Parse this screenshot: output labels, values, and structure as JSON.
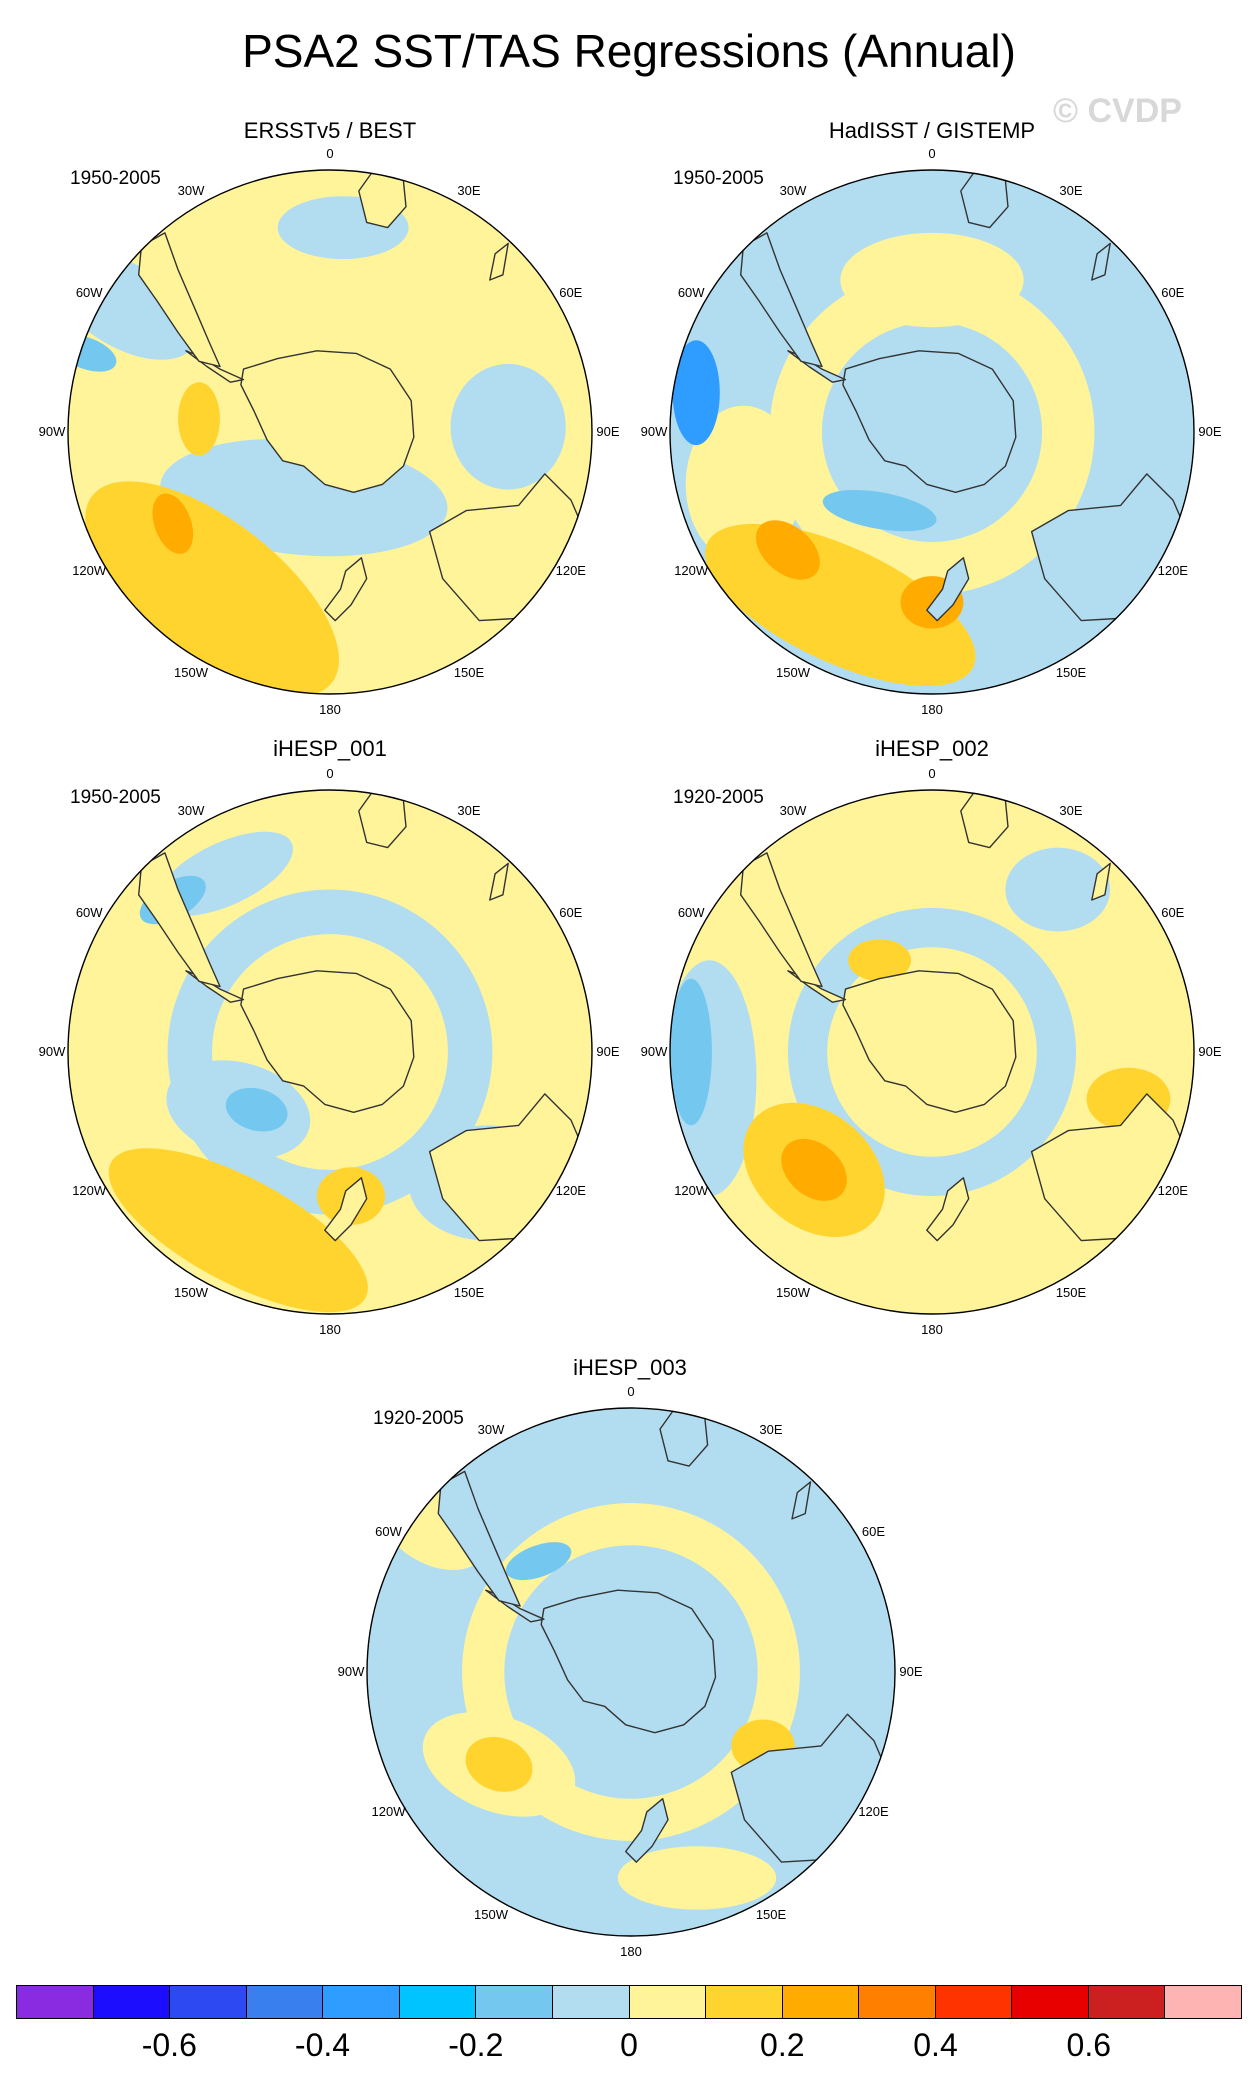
{
  "title": "PSA2 SST/TAS Regressions (Annual)",
  "watermark": "© CVDP",
  "panels": [
    {
      "title": "ERSSTv5 / BEST",
      "period": "1950-2005"
    },
    {
      "title": "HadISST / GISTEMP",
      "period": "1950-2005"
    },
    {
      "title": "iHESP_001",
      "period": "1950-2005"
    },
    {
      "title": "iHESP_002",
      "period": "1920-2005"
    },
    {
      "title": "iHESP_003",
      "period": "1920-2005"
    }
  ],
  "longitude_labels": [
    "0",
    "30E",
    "60E",
    "90E",
    "120E",
    "150E",
    "180",
    "150W",
    "120W",
    "90W",
    "60W",
    "30W"
  ],
  "colorbar": {
    "colors": [
      "#8a2be2",
      "#1c0dff",
      "#2c49f2",
      "#397fee",
      "#2f9cff",
      "#00c4ff",
      "#74c8f0",
      "#b2ddf1",
      "#fff49a",
      "#ffd42f",
      "#ffab00",
      "#ff7f00",
      "#ff3300",
      "#e80000",
      "#cc1f1f",
      "#ffb4b4"
    ],
    "tick_labels": [
      "-0.6",
      "-0.4",
      "-0.2",
      "0",
      "0.2",
      "0.4",
      "0.6"
    ]
  },
  "map_colors": {
    "light_blue": "#b2ddf1",
    "mid_blue": "#74c8f0",
    "blue": "#2f9cff",
    "pale_yellow": "#fff49a",
    "yellow": "#ffd42f",
    "orange": "#ffab00"
  }
}
